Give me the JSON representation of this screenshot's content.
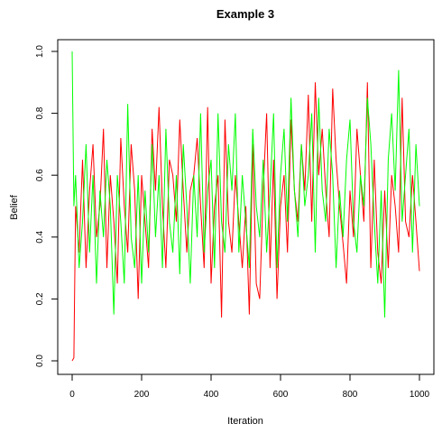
{
  "chart_data": {
    "type": "line",
    "title": "Example 3",
    "xlabel": "Iteration",
    "ylabel": "Belief",
    "xlim": [
      0,
      1000
    ],
    "ylim": [
      0.0,
      1.0
    ],
    "xticks": [
      "0",
      "200",
      "400",
      "600",
      "800",
      "1000"
    ],
    "yticks": [
      "0.0",
      "0.2",
      "0.4",
      "0.6",
      "0.8",
      "1.0"
    ],
    "xtick_values": [
      0,
      200,
      400,
      600,
      800,
      1000
    ],
    "ytick_values": [
      0.0,
      0.2,
      0.4,
      0.6,
      0.8,
      1.0
    ],
    "grid": false,
    "series": [
      {
        "color": "#ff0000",
        "x": [
          0,
          5,
          10,
          20,
          30,
          40,
          50,
          60,
          70,
          80,
          90,
          100,
          110,
          120,
          130,
          140,
          150,
          160,
          170,
          180,
          190,
          200,
          210,
          220,
          230,
          240,
          250,
          260,
          270,
          280,
          290,
          300,
          310,
          320,
          330,
          340,
          350,
          360,
          370,
          380,
          390,
          400,
          410,
          420,
          430,
          440,
          450,
          460,
          470,
          480,
          490,
          500,
          510,
          520,
          530,
          540,
          550,
          560,
          570,
          580,
          590,
          600,
          610,
          620,
          630,
          640,
          650,
          660,
          670,
          680,
          690,
          700,
          710,
          720,
          730,
          740,
          750,
          760,
          770,
          780,
          790,
          800,
          810,
          820,
          830,
          840,
          850,
          860,
          870,
          880,
          890,
          900,
          910,
          920,
          930,
          940,
          950,
          960,
          970,
          980,
          990,
          1000
        ],
        "values": [
          0.0,
          0.01,
          0.5,
          0.35,
          0.65,
          0.3,
          0.55,
          0.7,
          0.4,
          0.5,
          0.75,
          0.3,
          0.6,
          0.45,
          0.25,
          0.72,
          0.5,
          0.35,
          0.7,
          0.55,
          0.2,
          0.6,
          0.45,
          0.3,
          0.75,
          0.55,
          0.82,
          0.5,
          0.3,
          0.65,
          0.6,
          0.45,
          0.78,
          0.55,
          0.35,
          0.55,
          0.6,
          0.72,
          0.5,
          0.3,
          0.82,
          0.25,
          0.5,
          0.6,
          0.14,
          0.78,
          0.45,
          0.35,
          0.6,
          0.45,
          0.3,
          0.5,
          0.15,
          0.7,
          0.25,
          0.2,
          0.55,
          0.8,
          0.3,
          0.65,
          0.2,
          0.5,
          0.6,
          0.35,
          0.78,
          0.55,
          0.45,
          0.7,
          0.55,
          0.86,
          0.45,
          0.9,
          0.6,
          0.75,
          0.55,
          0.4,
          0.88,
          0.65,
          0.5,
          0.38,
          0.25,
          0.55,
          0.4,
          0.75,
          0.6,
          0.45,
          0.9,
          0.3,
          0.65,
          0.35,
          0.25,
          0.55,
          0.3,
          0.6,
          0.5,
          0.35,
          0.85,
          0.45,
          0.4,
          0.6,
          0.45,
          0.29
        ]
      },
      {
        "color": "#00ff00",
        "x": [
          0,
          5,
          10,
          20,
          30,
          40,
          50,
          60,
          70,
          80,
          90,
          100,
          110,
          120,
          130,
          140,
          150,
          160,
          170,
          180,
          190,
          200,
          210,
          220,
          230,
          240,
          250,
          260,
          270,
          280,
          290,
          300,
          310,
          320,
          330,
          340,
          350,
          360,
          370,
          380,
          390,
          400,
          410,
          420,
          430,
          440,
          450,
          460,
          470,
          480,
          490,
          500,
          510,
          520,
          530,
          540,
          550,
          560,
          570,
          580,
          590,
          600,
          610,
          620,
          630,
          640,
          650,
          660,
          670,
          680,
          690,
          700,
          710,
          720,
          730,
          740,
          750,
          760,
          770,
          780,
          790,
          800,
          810,
          820,
          830,
          840,
          850,
          860,
          870,
          880,
          890,
          900,
          910,
          920,
          930,
          940,
          950,
          960,
          970,
          980,
          990,
          1000
        ],
        "values": [
          1.0,
          0.5,
          0.6,
          0.3,
          0.45,
          0.7,
          0.35,
          0.6,
          0.25,
          0.55,
          0.4,
          0.65,
          0.5,
          0.15,
          0.6,
          0.45,
          0.25,
          0.83,
          0.4,
          0.3,
          0.6,
          0.25,
          0.55,
          0.35,
          0.7,
          0.4,
          0.6,
          0.3,
          0.75,
          0.45,
          0.35,
          0.6,
          0.28,
          0.7,
          0.5,
          0.25,
          0.6,
          0.4,
          0.8,
          0.35,
          0.55,
          0.65,
          0.3,
          0.8,
          0.45,
          0.35,
          0.7,
          0.55,
          0.8,
          0.35,
          0.6,
          0.45,
          0.3,
          0.75,
          0.5,
          0.4,
          0.65,
          0.35,
          0.55,
          0.8,
          0.3,
          0.6,
          0.75,
          0.45,
          0.85,
          0.55,
          0.4,
          0.7,
          0.5,
          0.6,
          0.8,
          0.35,
          0.85,
          0.55,
          0.45,
          0.75,
          0.6,
          0.3,
          0.55,
          0.4,
          0.65,
          0.78,
          0.45,
          0.35,
          0.6,
          0.5,
          0.85,
          0.7,
          0.45,
          0.25,
          0.55,
          0.14,
          0.65,
          0.8,
          0.55,
          0.94,
          0.45,
          0.6,
          0.75,
          0.35,
          0.7,
          0.5
        ]
      }
    ]
  }
}
